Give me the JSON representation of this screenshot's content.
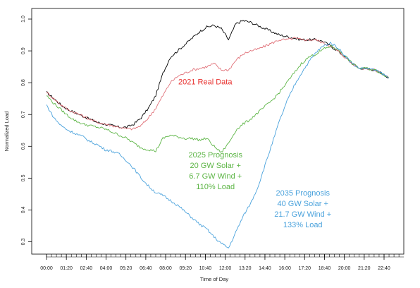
{
  "chart_data": {
    "type": "line",
    "title": "",
    "xlabel": "Time of Day",
    "ylabel": "Normalized Load",
    "xlim": [
      0,
      24
    ],
    "ylim": [
      0.27,
      1.02
    ],
    "x_tick_labels": [
      "00:00",
      "01:20",
      "02:40",
      "04:00",
      "05:20",
      "06:40",
      "08:00",
      "09:20",
      "10:40",
      "12:00",
      "13:20",
      "14:40",
      "16:00",
      "17:20",
      "18:40",
      "20:00",
      "21:20",
      "22:40"
    ],
    "y_tick_labels": [
      "0.3",
      "0.4",
      "0.5",
      "0.6",
      "0.7",
      "0.8",
      "0.9",
      "1.0"
    ],
    "y_ticks": [
      0.3,
      0.4,
      0.5,
      0.6,
      0.7,
      0.8,
      0.9,
      1.0
    ],
    "series": [
      {
        "color": "#000000",
        "x": [
          0,
          0.5,
          1,
          1.5,
          2,
          2.5,
          3,
          3.5,
          4,
          4.5,
          5,
          5.5,
          6,
          6.5,
          7,
          7.5,
          8,
          8.5,
          9,
          9.5,
          10,
          10.5,
          11,
          11.5,
          12,
          12.5,
          13,
          13.5,
          14,
          14.5,
          15,
          15.5,
          16,
          16.5,
          17,
          17.5,
          18,
          18.5,
          19,
          19.5,
          20,
          20.5,
          21,
          21.5,
          22,
          22.5,
          23,
          23.5
        ],
        "values": [
          0.77,
          0.75,
          0.73,
          0.715,
          0.705,
          0.695,
          0.685,
          0.675,
          0.67,
          0.665,
          0.66,
          0.66,
          0.67,
          0.69,
          0.72,
          0.76,
          0.83,
          0.88,
          0.9,
          0.92,
          0.94,
          0.96,
          0.975,
          0.98,
          0.97,
          0.935,
          0.985,
          0.995,
          0.99,
          0.98,
          0.97,
          0.96,
          0.95,
          0.945,
          0.94,
          0.935,
          0.935,
          0.935,
          0.93,
          0.915,
          0.9,
          0.88,
          0.86,
          0.845,
          0.845,
          0.84,
          0.83,
          0.815
        ]
      },
      {
        "color": "#e07078",
        "x": [
          0,
          0.5,
          1,
          1.5,
          2,
          2.5,
          3,
          3.5,
          4,
          4.5,
          5,
          5.5,
          6,
          6.5,
          7,
          7.5,
          8,
          8.5,
          9,
          9.5,
          10,
          10.5,
          11,
          11.5,
          12,
          12.5,
          13,
          13.5,
          14,
          14.5,
          15,
          15.5,
          16,
          16.5,
          17,
          17.5,
          18,
          18.5,
          19,
          19.5,
          20,
          20.5,
          21,
          21.5,
          22,
          22.5,
          23,
          23.5
        ],
        "values": [
          0.77,
          0.75,
          0.73,
          0.715,
          0.705,
          0.695,
          0.685,
          0.675,
          0.67,
          0.665,
          0.66,
          0.655,
          0.655,
          0.665,
          0.69,
          0.72,
          0.76,
          0.8,
          0.82,
          0.83,
          0.84,
          0.845,
          0.85,
          0.86,
          0.84,
          0.84,
          0.87,
          0.89,
          0.9,
          0.905,
          0.915,
          0.925,
          0.935,
          0.935,
          0.94,
          0.935,
          0.935,
          0.935,
          0.925,
          0.915,
          0.9,
          0.88,
          0.86,
          0.845,
          0.845,
          0.84,
          0.83,
          0.815
        ]
      },
      {
        "color": "#5cb545",
        "x": [
          0,
          0.5,
          1,
          1.5,
          2,
          2.5,
          3,
          3.5,
          4,
          4.5,
          5,
          5.5,
          6,
          6.5,
          7,
          7.5,
          8,
          8.5,
          9,
          9.5,
          10,
          10.5,
          11,
          11.5,
          12,
          12.5,
          13,
          13.5,
          14,
          14.5,
          15,
          15.5,
          16,
          16.5,
          17,
          17.5,
          18,
          18.5,
          19,
          19.5,
          20,
          20.5,
          21,
          21.5,
          22,
          22.5,
          23,
          23.5
        ],
        "values": [
          0.76,
          0.735,
          0.715,
          0.695,
          0.68,
          0.67,
          0.665,
          0.66,
          0.655,
          0.645,
          0.635,
          0.625,
          0.61,
          0.595,
          0.59,
          0.585,
          0.625,
          0.635,
          0.63,
          0.625,
          0.625,
          0.62,
          0.625,
          0.6,
          0.58,
          0.61,
          0.65,
          0.67,
          0.685,
          0.705,
          0.725,
          0.745,
          0.77,
          0.8,
          0.83,
          0.86,
          0.88,
          0.89,
          0.905,
          0.915,
          0.905,
          0.885,
          0.86,
          0.845,
          0.845,
          0.84,
          0.83,
          0.815
        ]
      },
      {
        "color": "#4aa2dc",
        "x": [
          0,
          0.5,
          1,
          1.5,
          2,
          2.5,
          3,
          3.5,
          4,
          4.5,
          5,
          5.5,
          6,
          6.5,
          7,
          7.5,
          8,
          8.5,
          9,
          9.5,
          10,
          10.5,
          11,
          11.5,
          12,
          12.5,
          13,
          13.5,
          14,
          14.5,
          15,
          15.5,
          16,
          16.5,
          17,
          17.5,
          18,
          18.5,
          19,
          19.5,
          20,
          20.5,
          21,
          21.5,
          22,
          22.5,
          23,
          23.5
        ],
        "values": [
          0.73,
          0.69,
          0.665,
          0.65,
          0.64,
          0.63,
          0.615,
          0.605,
          0.59,
          0.585,
          0.575,
          0.555,
          0.53,
          0.5,
          0.475,
          0.455,
          0.445,
          0.43,
          0.415,
          0.395,
          0.375,
          0.355,
          0.34,
          0.315,
          0.295,
          0.28,
          0.33,
          0.38,
          0.42,
          0.47,
          0.54,
          0.61,
          0.68,
          0.74,
          0.79,
          0.83,
          0.865,
          0.895,
          0.915,
          0.925,
          0.91,
          0.885,
          0.86,
          0.845,
          0.845,
          0.84,
          0.83,
          0.815
        ]
      }
    ],
    "annotations": [
      {
        "color": "#e8302e",
        "lines": [
          "2021 Real Data"
        ],
        "anchor": [
          10.9,
          0.795
        ]
      },
      {
        "color": "#5cb545",
        "lines": [
          "2025 Prognosis",
          "20 GW Solar +",
          "6.7 GW Wind +",
          "110% Load"
        ],
        "anchor": [
          11.6,
          0.565
        ]
      },
      {
        "color": "#4aa2dc",
        "lines": [
          "2035 Prognosis",
          "40 GW Solar +",
          "21.7 GW Wind +",
          "133% Load"
        ],
        "anchor": [
          17.6,
          0.445
        ]
      }
    ],
    "grid": false,
    "legend": "none"
  }
}
